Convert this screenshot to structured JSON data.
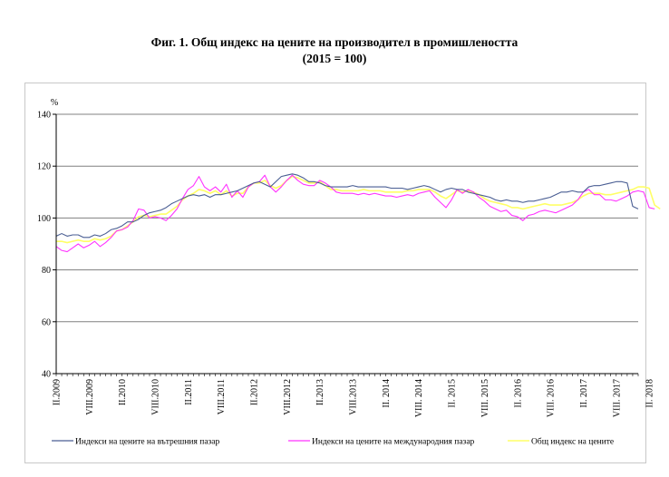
{
  "title": {
    "line1": "Фиг. 1. Общ индекс на цените на производител в промишлеността",
    "line2": "(2015 = 100)"
  },
  "colors": {
    "domestic": "#4a5e93",
    "international": "#ff33ff",
    "total": "#ffff66",
    "grid": "#808080",
    "axis": "#000000"
  },
  "chart_data": {
    "type": "line",
    "title": "Фиг. 1. Общ индекс на цените на производител в промишлеността (2015 = 100)",
    "ylabel": "%",
    "ylim": [
      40,
      140
    ],
    "yticks": [
      40,
      60,
      80,
      100,
      120,
      140
    ],
    "grid": true,
    "legend_position": "bottom",
    "x_start": "II.2009",
    "x_end": "II.2018",
    "x_tick_labels": [
      "II.2009",
      "VIII.2009",
      "II.2010",
      "VIII.2010",
      "II.2011",
      "VIII.2011",
      "II.2012",
      "VIII.2012",
      "II.2013",
      "VIII.2013",
      "II. 2014",
      "VIII. 2014",
      "II. 2015",
      "VIII. 2015",
      "II. 2016",
      "VIII. 2016",
      "II. 2017",
      "VIII. 2017",
      "II. 2018"
    ],
    "series": [
      {
        "name": "Индекси на цените на вътрешния пазар",
        "color": "#4a5e93",
        "values": [
          93,
          94,
          93,
          93.5,
          93.5,
          92.5,
          92.5,
          93.5,
          93,
          94,
          95.5,
          96,
          97,
          98.5,
          98.5,
          99.5,
          101,
          102,
          102.5,
          103,
          104,
          105.5,
          106.5,
          107.5,
          108.5,
          109,
          108.5,
          109,
          108,
          109,
          109,
          109.5,
          110,
          110.5,
          111.5,
          112.5,
          113.5,
          114,
          113,
          112,
          114,
          116,
          116.5,
          117,
          116.5,
          115.5,
          114,
          114,
          113.5,
          112.5,
          112,
          112,
          112,
          112,
          112.5,
          112,
          112,
          112,
          112,
          112,
          112,
          111.5,
          111.5,
          111.5,
          111,
          111.5,
          112,
          112.5,
          112,
          111,
          110,
          111,
          111.5,
          111,
          111,
          110,
          109.5,
          109,
          108.5,
          108,
          107,
          106.5,
          107,
          106.5,
          106.5,
          106,
          106.5,
          106.5,
          107,
          107.5,
          108,
          109,
          110,
          110,
          110.5,
          110,
          110,
          112,
          112.5,
          112.5,
          113,
          113.5,
          114,
          114,
          113.5,
          104.5,
          103.5
        ]
      },
      {
        "name": "Индекси на цените на международния пазар",
        "color": "#ff33ff",
        "values": [
          89,
          87.5,
          87,
          88.5,
          90,
          88.5,
          89.5,
          91,
          89,
          90.5,
          92.5,
          95,
          95.5,
          96.5,
          99,
          103.5,
          103,
          100,
          100.5,
          100,
          99,
          101,
          103.5,
          107.5,
          111,
          112.5,
          116,
          112,
          110.5,
          112,
          110,
          113,
          108,
          110.5,
          108,
          112,
          113.5,
          114,
          116.5,
          112,
          110,
          112,
          114.5,
          116.5,
          114.5,
          113,
          112.5,
          112.5,
          114.5,
          113.5,
          112,
          110,
          109.5,
          109.5,
          109.5,
          109,
          109.5,
          109,
          109.5,
          109,
          108.5,
          108.5,
          108,
          108.5,
          109,
          108.5,
          109.5,
          110,
          110.5,
          108,
          106,
          104,
          107,
          111,
          109.5,
          111,
          110,
          108,
          106.5,
          104.5,
          103.5,
          102.5,
          103,
          101,
          100.5,
          99,
          101,
          101.5,
          102.5,
          103,
          102.5,
          102,
          103,
          104,
          105,
          107,
          110,
          111,
          109,
          109,
          107,
          107,
          106.5,
          107.5,
          108.5,
          110,
          110.5,
          110,
          104,
          103.5
        ]
      },
      {
        "name": "Общ индекс на цените",
        "color": "#ffff66",
        "values": [
          91,
          91,
          90.5,
          91,
          91.5,
          91,
          91,
          92,
          91.5,
          92,
          93,
          95,
          95.5,
          97,
          98.5,
          100.5,
          101,
          100.5,
          101,
          101.5,
          101.5,
          103,
          104.5,
          107,
          108.5,
          109.5,
          111,
          110.5,
          109.5,
          110.5,
          109,
          110.5,
          108.5,
          109.5,
          109.5,
          112,
          113.5,
          113.5,
          114.5,
          112.5,
          111.5,
          112.5,
          114.5,
          116,
          115.5,
          114.5,
          113.5,
          113.5,
          114,
          112.5,
          111,
          111,
          110.5,
          110.5,
          110.5,
          110.5,
          111,
          110.5,
          110.5,
          110.5,
          110,
          110,
          110,
          110,
          110.5,
          110.5,
          111,
          111,
          111,
          110,
          108.5,
          107.5,
          109,
          110.5,
          110,
          110.5,
          110,
          109,
          107.5,
          106.5,
          106,
          105.5,
          105,
          104,
          104,
          103.5,
          104,
          104.5,
          105,
          105.5,
          105,
          105,
          105,
          105.5,
          106,
          107,
          108.5,
          109.5,
          109.5,
          109.5,
          109,
          109,
          109.5,
          110,
          110.5,
          111,
          112,
          112,
          111.5,
          105,
          103.5
        ]
      }
    ]
  }
}
